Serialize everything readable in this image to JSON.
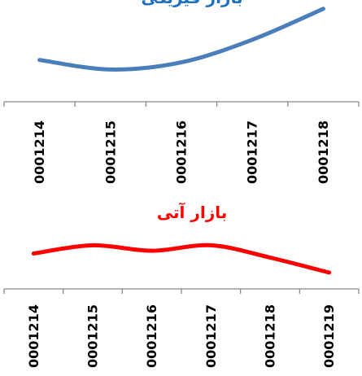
{
  "chart_data": [
    {
      "type": "line",
      "title": "بازار فیزیکی",
      "title_color": "#1f6fbf",
      "series_color": "#4a7ebb",
      "categories": [
        "0001214",
        "0001215",
        "0001216",
        "0001217",
        "0001218"
      ],
      "series": [
        {
          "values": [
            68,
            60,
            66,
            85,
            111
          ]
        }
      ],
      "ylim": [
        50,
        115
      ],
      "grid": false,
      "legend": "none"
    },
    {
      "type": "line",
      "title": "بازار آتی",
      "title_color": "#ff0000",
      "series_color": "#ff0000",
      "categories": [
        "0001214",
        "0001215",
        "0001216",
        "0001217",
        "0001218",
        "0001219"
      ],
      "series": [
        {
          "values": [
            78,
            84,
            80,
            84,
            75,
            64
          ]
        }
      ],
      "ylim": [
        55,
        95
      ],
      "grid": false,
      "legend": "none"
    }
  ]
}
